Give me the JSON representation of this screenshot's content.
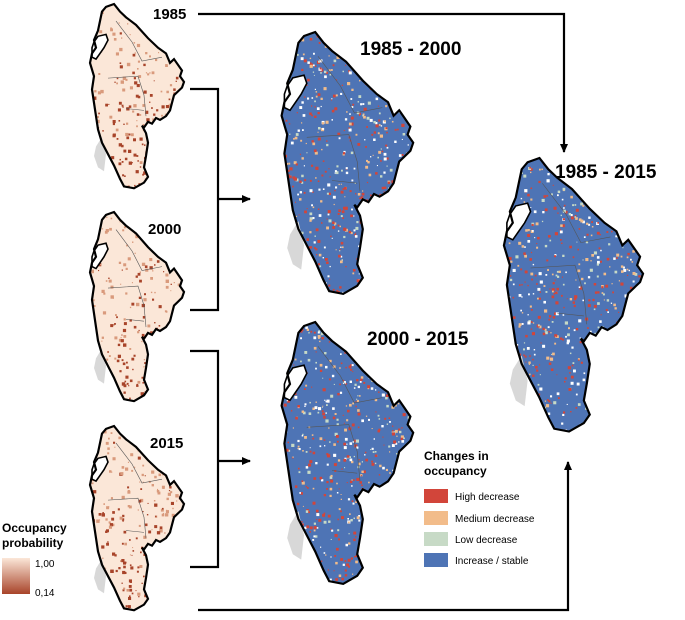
{
  "maps": {
    "y1985": "1985",
    "y2000": "2000",
    "y2015": "2015",
    "c8500": "1985 - 2000",
    "c0015": "2000 - 2015",
    "c8515": "1985 - 2015"
  },
  "legend_occupancy": {
    "title_line1": "Occupancy",
    "title_line2": "probability",
    "max": "1,00",
    "min": "0,14",
    "color_high": "#fbe7d8",
    "color_low": "#a8442a"
  },
  "legend_changes": {
    "title_line1": "Changes in",
    "title_line2": "occupancy",
    "items": [
      {
        "label": "High decrease",
        "color": "#d2453a"
      },
      {
        "label": "Medium decrease",
        "color": "#f2bc8a"
      },
      {
        "label": "Low decrease",
        "color": "#c7dac6"
      },
      {
        "label": "Increase / stable",
        "color": "#4e74b5"
      }
    ]
  }
}
